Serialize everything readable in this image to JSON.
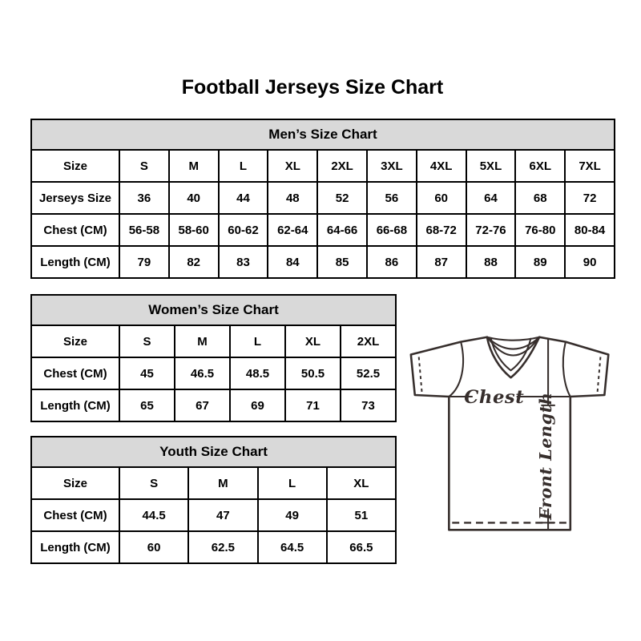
{
  "page": {
    "title": "Football Jerseys Size Chart"
  },
  "tables": {
    "mens": {
      "title": "Men’s Size Chart",
      "rows": [
        [
          "Size",
          "S",
          "M",
          "L",
          "XL",
          "2XL",
          "3XL",
          "4XL",
          "5XL",
          "6XL",
          "7XL"
        ],
        [
          "Jerseys Size",
          "36",
          "40",
          "44",
          "48",
          "52",
          "56",
          "60",
          "64",
          "68",
          "72"
        ],
        [
          "Chest (CM)",
          "56-58",
          "58-60",
          "60-62",
          "62-64",
          "64-66",
          "66-68",
          "68-72",
          "72-76",
          "76-80",
          "80-84"
        ],
        [
          "Length (CM)",
          "79",
          "82",
          "83",
          "84",
          "85",
          "86",
          "87",
          "88",
          "89",
          "90"
        ]
      ]
    },
    "womens": {
      "title": "Women’s Size Chart",
      "rows": [
        [
          "Size",
          "S",
          "M",
          "L",
          "XL",
          "2XL"
        ],
        [
          "Chest (CM)",
          "45",
          "46.5",
          "48.5",
          "50.5",
          "52.5"
        ],
        [
          "Length (CM)",
          "65",
          "67",
          "69",
          "71",
          "73"
        ]
      ]
    },
    "youth": {
      "title": "Youth Size Chart",
      "rows": [
        [
          "Size",
          "S",
          "M",
          "L",
          "XL"
        ],
        [
          "Chest (CM)",
          "44.5",
          "47",
          "49",
          "51"
        ],
        [
          "Length (CM)",
          "60",
          "62.5",
          "64.5",
          "66.5"
        ]
      ]
    }
  },
  "diagram": {
    "chest_label": "Chest",
    "front_length_label": "Front Length"
  },
  "colors": {
    "table_header_bg": "#d9d9d9",
    "table_border": "#000000",
    "text": "#000000",
    "diagram_stroke": "#362e2c"
  }
}
